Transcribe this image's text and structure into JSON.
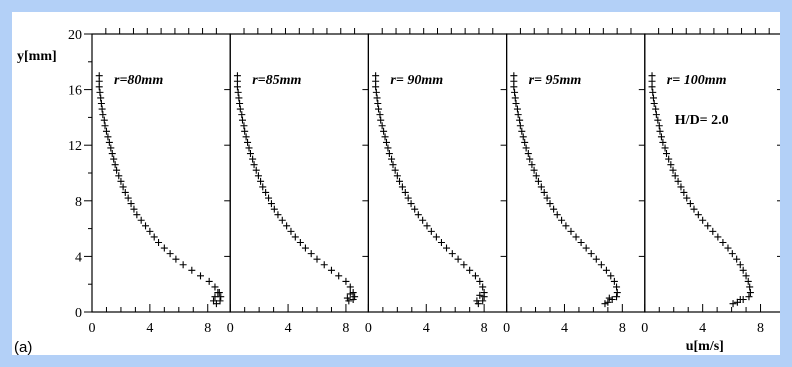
{
  "figure_label": "(a)",
  "chart_data": {
    "type": "scatter",
    "xlabel": "u[m/s]",
    "ylabel": "y[mm]",
    "ylim": [
      0,
      20
    ],
    "yticks": [
      0,
      4,
      8,
      12,
      16,
      20
    ],
    "xlim": [
      0,
      9
    ],
    "xticks": [
      0,
      4,
      8
    ],
    "annotation": "H/D= 2.0",
    "panels": [
      {
        "label": "r=80mm",
        "points": [
          [
            0.5,
            17
          ],
          [
            0.5,
            16.6
          ],
          [
            0.5,
            16.2
          ],
          [
            0.55,
            15.8
          ],
          [
            0.6,
            15.4
          ],
          [
            0.65,
            15
          ],
          [
            0.7,
            14.6
          ],
          [
            0.75,
            14.2
          ],
          [
            0.85,
            13.8
          ],
          [
            0.9,
            13.4
          ],
          [
            1,
            13
          ],
          [
            1.1,
            12.6
          ],
          [
            1.2,
            12.2
          ],
          [
            1.3,
            11.8
          ],
          [
            1.4,
            11.4
          ],
          [
            1.5,
            11
          ],
          [
            1.6,
            10.6
          ],
          [
            1.7,
            10.2
          ],
          [
            1.85,
            9.8
          ],
          [
            2,
            9.4
          ],
          [
            2.15,
            9
          ],
          [
            2.3,
            8.6
          ],
          [
            2.5,
            8.2
          ],
          [
            2.7,
            7.8
          ],
          [
            2.9,
            7.4
          ],
          [
            3.1,
            7
          ],
          [
            3.4,
            6.6
          ],
          [
            3.7,
            6.2
          ],
          [
            4,
            5.8
          ],
          [
            4.3,
            5.4
          ],
          [
            4.6,
            5
          ],
          [
            5,
            4.6
          ],
          [
            5.4,
            4.2
          ],
          [
            5.8,
            3.8
          ],
          [
            6.3,
            3.4
          ],
          [
            6.9,
            3
          ],
          [
            7.5,
            2.6
          ],
          [
            8.1,
            2.2
          ],
          [
            8.5,
            1.8
          ],
          [
            8.8,
            1.4
          ],
          [
            8.9,
            1.1
          ],
          [
            8.85,
            0.8
          ],
          [
            8.6,
            0.6
          ],
          [
            8.4,
            0.8
          ],
          [
            8.5,
            1.1
          ],
          [
            8.7,
            1.4
          ]
        ]
      },
      {
        "label": "r=85mm",
        "points": [
          [
            0.5,
            17
          ],
          [
            0.5,
            16.6
          ],
          [
            0.5,
            16.2
          ],
          [
            0.55,
            15.8
          ],
          [
            0.6,
            15.4
          ],
          [
            0.65,
            15
          ],
          [
            0.7,
            14.6
          ],
          [
            0.8,
            14.2
          ],
          [
            0.85,
            13.8
          ],
          [
            0.95,
            13.4
          ],
          [
            1,
            13
          ],
          [
            1.1,
            12.6
          ],
          [
            1.2,
            12.2
          ],
          [
            1.3,
            11.8
          ],
          [
            1.4,
            11.4
          ],
          [
            1.55,
            11
          ],
          [
            1.65,
            10.6
          ],
          [
            1.8,
            10.2
          ],
          [
            1.95,
            9.8
          ],
          [
            2.1,
            9.4
          ],
          [
            2.25,
            9
          ],
          [
            2.45,
            8.6
          ],
          [
            2.65,
            8.2
          ],
          [
            2.85,
            7.8
          ],
          [
            3.05,
            7.4
          ],
          [
            3.3,
            7
          ],
          [
            3.6,
            6.6
          ],
          [
            3.9,
            6.2
          ],
          [
            4.2,
            5.8
          ],
          [
            4.5,
            5.4
          ],
          [
            4.85,
            5
          ],
          [
            5.2,
            4.6
          ],
          [
            5.6,
            4.2
          ],
          [
            6,
            3.8
          ],
          [
            6.5,
            3.4
          ],
          [
            7,
            3
          ],
          [
            7.5,
            2.6
          ],
          [
            8,
            2.2
          ],
          [
            8.3,
            1.8
          ],
          [
            8.5,
            1.4
          ],
          [
            8.6,
            1.1
          ],
          [
            8.5,
            0.9
          ],
          [
            8.2,
            0.8
          ],
          [
            8.1,
            1
          ],
          [
            8.3,
            1.3
          ]
        ]
      },
      {
        "label": "r= 90mm",
        "points": [
          [
            0.5,
            17
          ],
          [
            0.5,
            16.6
          ],
          [
            0.5,
            16.2
          ],
          [
            0.55,
            15.8
          ],
          [
            0.6,
            15.4
          ],
          [
            0.65,
            15
          ],
          [
            0.7,
            14.6
          ],
          [
            0.8,
            14.2
          ],
          [
            0.85,
            13.8
          ],
          [
            0.95,
            13.4
          ],
          [
            1.05,
            13
          ],
          [
            1.15,
            12.6
          ],
          [
            1.25,
            12.2
          ],
          [
            1.35,
            11.8
          ],
          [
            1.45,
            11.4
          ],
          [
            1.6,
            11
          ],
          [
            1.7,
            10.6
          ],
          [
            1.85,
            10.2
          ],
          [
            2,
            9.8
          ],
          [
            2.15,
            9.4
          ],
          [
            2.35,
            9
          ],
          [
            2.55,
            8.6
          ],
          [
            2.75,
            8.2
          ],
          [
            2.95,
            7.8
          ],
          [
            3.2,
            7.4
          ],
          [
            3.45,
            7
          ],
          [
            3.75,
            6.6
          ],
          [
            4.05,
            6.2
          ],
          [
            4.35,
            5.8
          ],
          [
            4.7,
            5.4
          ],
          [
            5.05,
            5
          ],
          [
            5.4,
            4.6
          ],
          [
            5.8,
            4.2
          ],
          [
            6.2,
            3.8
          ],
          [
            6.6,
            3.4
          ],
          [
            7,
            3
          ],
          [
            7.4,
            2.6
          ],
          [
            7.7,
            2.2
          ],
          [
            7.9,
            1.8
          ],
          [
            8,
            1.4
          ],
          [
            8,
            1.1
          ],
          [
            7.9,
            0.8
          ],
          [
            7.6,
            0.6
          ],
          [
            7.5,
            0.8
          ],
          [
            7.7,
            1.2
          ]
        ]
      },
      {
        "label": "r= 95mm",
        "points": [
          [
            0.5,
            17
          ],
          [
            0.5,
            16.6
          ],
          [
            0.5,
            16.2
          ],
          [
            0.55,
            15.8
          ],
          [
            0.6,
            15.4
          ],
          [
            0.65,
            15
          ],
          [
            0.75,
            14.6
          ],
          [
            0.8,
            14.2
          ],
          [
            0.9,
            13.8
          ],
          [
            0.95,
            13.4
          ],
          [
            1.05,
            13
          ],
          [
            1.15,
            12.6
          ],
          [
            1.25,
            12.2
          ],
          [
            1.35,
            11.8
          ],
          [
            1.5,
            11.4
          ],
          [
            1.6,
            11
          ],
          [
            1.75,
            10.6
          ],
          [
            1.9,
            10.2
          ],
          [
            2.05,
            9.8
          ],
          [
            2.2,
            9.4
          ],
          [
            2.4,
            9
          ],
          [
            2.6,
            8.6
          ],
          [
            2.8,
            8.2
          ],
          [
            3,
            7.8
          ],
          [
            3.25,
            7.4
          ],
          [
            3.5,
            7
          ],
          [
            3.8,
            6.6
          ],
          [
            4.1,
            6.2
          ],
          [
            4.45,
            5.8
          ],
          [
            4.8,
            5.4
          ],
          [
            5.15,
            5
          ],
          [
            5.5,
            4.6
          ],
          [
            5.85,
            4.2
          ],
          [
            6.2,
            3.8
          ],
          [
            6.55,
            3.4
          ],
          [
            6.9,
            3
          ],
          [
            7.2,
            2.6
          ],
          [
            7.45,
            2.2
          ],
          [
            7.6,
            1.8
          ],
          [
            7.65,
            1.4
          ],
          [
            7.6,
            1.1
          ],
          [
            7.3,
            0.9
          ],
          [
            7,
            0.7
          ],
          [
            6.8,
            0.6
          ],
          [
            7.1,
            1
          ]
        ]
      },
      {
        "label": "r= 100mm",
        "points": [
          [
            0.5,
            17
          ],
          [
            0.5,
            16.6
          ],
          [
            0.5,
            16.2
          ],
          [
            0.55,
            15.8
          ],
          [
            0.6,
            15.4
          ],
          [
            0.65,
            15
          ],
          [
            0.75,
            14.6
          ],
          [
            0.8,
            14.2
          ],
          [
            0.9,
            13.8
          ],
          [
            1,
            13.4
          ],
          [
            1.05,
            13
          ],
          [
            1.15,
            12.6
          ],
          [
            1.25,
            12.2
          ],
          [
            1.4,
            11.8
          ],
          [
            1.5,
            11.4
          ],
          [
            1.65,
            11
          ],
          [
            1.8,
            10.6
          ],
          [
            1.95,
            10.2
          ],
          [
            2.1,
            9.8
          ],
          [
            2.3,
            9.4
          ],
          [
            2.5,
            9
          ],
          [
            2.7,
            8.6
          ],
          [
            2.9,
            8.2
          ],
          [
            3.15,
            7.8
          ],
          [
            3.4,
            7.4
          ],
          [
            3.7,
            7
          ],
          [
            4,
            6.6
          ],
          [
            4.35,
            6.2
          ],
          [
            4.7,
            5.8
          ],
          [
            5.05,
            5.4
          ],
          [
            5.4,
            5
          ],
          [
            5.75,
            4.6
          ],
          [
            6.05,
            4.2
          ],
          [
            6.35,
            3.8
          ],
          [
            6.6,
            3.4
          ],
          [
            6.8,
            3
          ],
          [
            7,
            2.6
          ],
          [
            7.15,
            2.2
          ],
          [
            7.25,
            1.8
          ],
          [
            7.3,
            1.4
          ],
          [
            7.2,
            1.1
          ],
          [
            6.8,
            0.9
          ],
          [
            6.4,
            0.7
          ],
          [
            6.1,
            0.6
          ],
          [
            6.6,
            0.9
          ]
        ]
      }
    ]
  }
}
